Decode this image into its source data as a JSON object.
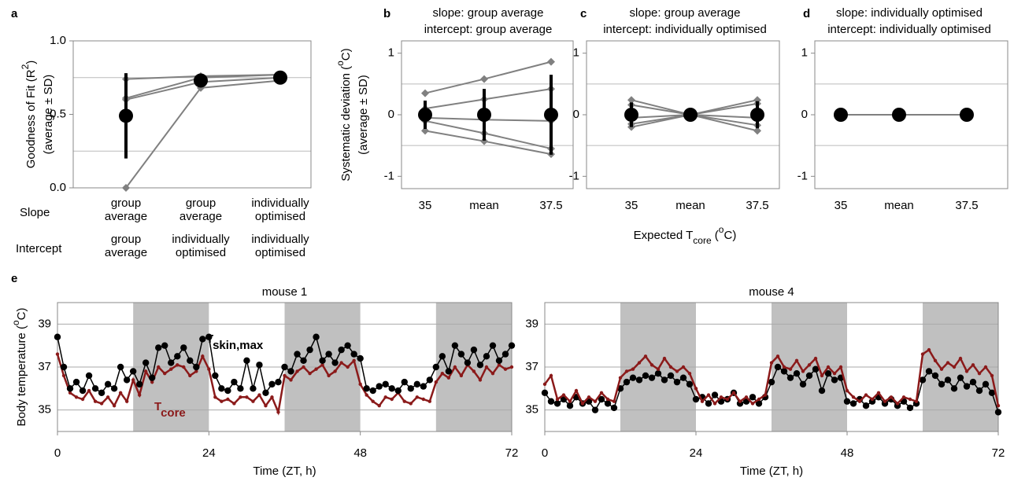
{
  "chart_data": [
    {
      "type": "line",
      "panel_label": "a",
      "y_label": [
        [
          {
            "text": "Goodness of Fit (R"
          },
          {
            "text": "2",
            "sup": true
          },
          {
            "text": ")"
          }
        ],
        [
          {
            "text": "(average ± SD)"
          }
        ]
      ],
      "row_labels": [
        "Slope",
        "Intercept"
      ],
      "slope_labels": [
        "group average",
        "group average",
        "individually optimised"
      ],
      "intercept_labels": [
        "group average",
        "individually optimised",
        "individually optimised"
      ],
      "ylim": [
        0,
        1
      ],
      "yticks": [
        {
          "value": 0,
          "label": "0.0"
        },
        {
          "value": 0.5,
          "label": "0.5"
        },
        {
          "value": 1,
          "label": "1.0"
        }
      ],
      "grid": [
        0.25,
        0.75
      ],
      "series": [
        {
          "color": "#808080",
          "values": [
            0.74,
            0.76,
            0.77
          ]
        },
        {
          "color": "#808080",
          "values": [
            0.61,
            0.75,
            0.77
          ]
        },
        {
          "color": "#808080",
          "values": [
            0.6,
            0.72,
            0.75
          ]
        },
        {
          "color": "#808080",
          "values": [
            0.0,
            0.68,
            0.73
          ]
        }
      ],
      "mean": {
        "color": "#000000",
        "values": [
          0.49,
          0.73,
          0.75
        ],
        "sd": [
          0.29,
          0.03,
          0.02
        ]
      }
    },
    {
      "type": "line",
      "panel_label": "b",
      "title": [
        "slope: group average",
        "intercept: group average"
      ],
      "y_label": [
        [
          {
            "text": "Systematic deviation ("
          },
          {
            "text": "o",
            "sup": true
          },
          {
            "text": "C)"
          }
        ],
        [
          {
            "text": "(average ± SD)"
          }
        ]
      ],
      "categories": [
        "35",
        "mean",
        "37.5"
      ],
      "ylim": [
        -1.2,
        1.2
      ],
      "yticks": [
        -1,
        0,
        1
      ],
      "grid": [
        -0.5,
        0.5
      ],
      "series": [
        {
          "color": "#808080",
          "values": [
            0.35,
            0.58,
            0.86
          ]
        },
        {
          "color": "#808080",
          "values": [
            0.1,
            0.25,
            0.42
          ]
        },
        {
          "color": "#808080",
          "values": [
            -0.05,
            -0.08,
            -0.1
          ]
        },
        {
          "color": "#808080",
          "values": [
            -0.1,
            -0.3,
            -0.55
          ]
        },
        {
          "color": "#808080",
          "values": [
            -0.26,
            -0.43,
            -0.64
          ]
        }
      ],
      "mean": {
        "color": "#000000",
        "values": [
          0,
          0,
          0
        ],
        "sd": [
          0.23,
          0.42,
          0.65
        ]
      }
    },
    {
      "type": "line",
      "panel_label": "c",
      "title": [
        "slope: group average",
        "intercept: individually optimised"
      ],
      "x_label": [
        {
          "text": "Expected T"
        },
        {
          "text": "core",
          "sub": true
        },
        {
          "text": " ("
        },
        {
          "text": "o",
          "sup": true
        },
        {
          "text": "C)"
        }
      ],
      "categories": [
        "35",
        "mean",
        "37.5"
      ],
      "ylim": [
        -1.2,
        1.2
      ],
      "yticks": [
        -1,
        0,
        1
      ],
      "grid": [
        -0.5,
        0.5
      ],
      "series": [
        {
          "color": "#808080",
          "values": [
            0.24,
            0,
            0.24
          ]
        },
        {
          "color": "#808080",
          "values": [
            0.16,
            0,
            0.18
          ]
        },
        {
          "color": "#808080",
          "values": [
            -0.05,
            0,
            -0.05
          ]
        },
        {
          "color": "#808080",
          "values": [
            -0.15,
            0,
            -0.17
          ]
        },
        {
          "color": "#808080",
          "values": [
            -0.2,
            0,
            -0.26
          ]
        }
      ],
      "mean": {
        "color": "#000000",
        "values": [
          0,
          0,
          0
        ],
        "sd": [
          0.2,
          0,
          0.22
        ]
      }
    },
    {
      "type": "line",
      "panel_label": "d",
      "title": [
        "slope: individually optimised",
        "intercept: individually optimised"
      ],
      "categories": [
        "35",
        "mean",
        "37.5"
      ],
      "ylim": [
        -1.2,
        1.2
      ],
      "yticks": [
        -1,
        0,
        1
      ],
      "grid": [
        -0.5,
        0.5
      ],
      "series": [
        {
          "color": "#808080",
          "values": [
            0,
            0,
            0
          ]
        }
      ],
      "mean": {
        "color": "#000000",
        "values": [
          0,
          0,
          0
        ],
        "sd": [
          0,
          0,
          0
        ]
      }
    },
    {
      "type": "line",
      "panel_label": "e",
      "title": "mouse 1",
      "x_label": "Time (ZT, h)",
      "y_label": [
        [
          {
            "text": "Body temperature ("
          },
          {
            "text": "o",
            "sup": true
          },
          {
            "text": "C)"
          }
        ]
      ],
      "xlim": [
        0,
        72
      ],
      "xticks": [
        0,
        24,
        48,
        72
      ],
      "ylim": [
        34,
        40
      ],
      "yticks": [
        35,
        37,
        39
      ],
      "grid": true,
      "dark_periods": [
        [
          12,
          24
        ],
        [
          36,
          48
        ],
        [
          60,
          72
        ]
      ],
      "x": [
        0,
        1,
        2,
        3,
        4,
        5,
        6,
        7,
        8,
        9,
        10,
        11,
        12,
        13,
        14,
        15,
        16,
        17,
        18,
        19,
        20,
        21,
        22,
        23,
        24,
        25,
        26,
        27,
        28,
        29,
        30,
        31,
        32,
        33,
        34,
        35,
        36,
        37,
        38,
        39,
        40,
        41,
        42,
        43,
        44,
        45,
        46,
        47,
        48,
        49,
        50,
        51,
        52,
        53,
        54,
        55,
        56,
        57,
        58,
        59,
        60,
        61,
        62,
        63,
        64,
        65,
        66,
        67,
        68,
        69,
        70,
        71,
        72
      ],
      "series": [
        {
          "color": "#8b1a1a",
          "marker": "dot",
          "values": [
            37.6,
            36.6,
            35.8,
            35.6,
            35.5,
            35.9,
            35.4,
            35.3,
            35.6,
            35.2,
            35.8,
            35.4,
            36.4,
            35.7,
            36.8,
            36.3,
            37.0,
            36.7,
            36.9,
            37.1,
            37.0,
            36.6,
            36.8,
            37.5,
            36.9,
            35.6,
            35.4,
            35.5,
            35.3,
            35.6,
            35.6,
            35.4,
            35.7,
            35.2,
            35.6,
            34.9,
            36.6,
            36.4,
            36.8,
            37.0,
            36.7,
            36.9,
            37.1,
            36.6,
            36.8,
            37.2,
            37.0,
            37.3,
            36.2,
            35.7,
            35.4,
            35.2,
            35.6,
            35.5,
            35.8,
            35.4,
            35.3,
            35.6,
            35.5,
            35.4,
            36.3,
            36.7,
            36.5,
            37.0,
            36.6,
            37.1,
            36.8,
            36.4,
            37.0,
            36.7,
            37.1,
            36.9,
            37.0
          ]
        },
        {
          "color": "#000000",
          "marker": "circle",
          "values": [
            38.4,
            37.0,
            36.0,
            36.3,
            35.9,
            36.6,
            36.0,
            35.8,
            36.2,
            36.0,
            37.0,
            36.4,
            36.8,
            36.2,
            37.2,
            36.5,
            37.9,
            38.0,
            37.2,
            37.5,
            37.9,
            37.3,
            37.0,
            38.3,
            38.4,
            36.6,
            36.0,
            35.9,
            36.3,
            36.0,
            37.3,
            36.0,
            37.1,
            35.8,
            36.2,
            36.3,
            37.0,
            36.8,
            37.6,
            37.3,
            37.8,
            38.4,
            37.3,
            37.6,
            37.2,
            37.8,
            38.0,
            37.6,
            37.4,
            36.0,
            35.9,
            36.1,
            36.2,
            36.0,
            35.9,
            36.3,
            36.0,
            36.2,
            36.1,
            36.4,
            37.0,
            37.5,
            36.8,
            38.0,
            37.6,
            37.2,
            37.8,
            37.1,
            37.5,
            38.0,
            37.3,
            37.6,
            38.0
          ]
        }
      ],
      "annotations": [
        {
          "color": "#000000",
          "parts": [
            {
              "text": "T"
            },
            {
              "text": "skin,max",
              "sub": true
            }
          ]
        },
        {
          "color": "#8b1a1a",
          "parts": [
            {
              "text": "T"
            },
            {
              "text": "core",
              "sub": true
            }
          ]
        }
      ]
    },
    {
      "type": "line",
      "title": "mouse 4",
      "x_label": "Time (ZT, h)",
      "xlim": [
        0,
        72
      ],
      "xticks": [
        0,
        24,
        48,
        72
      ],
      "ylim": [
        34,
        40
      ],
      "yticks": [
        35,
        37,
        39
      ],
      "grid": true,
      "dark_periods": [
        [
          12,
          24
        ],
        [
          36,
          48
        ],
        [
          60,
          72
        ]
      ],
      "x": [
        0,
        1,
        2,
        3,
        4,
        5,
        6,
        7,
        8,
        9,
        10,
        11,
        12,
        13,
        14,
        15,
        16,
        17,
        18,
        19,
        20,
        21,
        22,
        23,
        24,
        25,
        26,
        27,
        28,
        29,
        30,
        31,
        32,
        33,
        34,
        35,
        36,
        37,
        38,
        39,
        40,
        41,
        42,
        43,
        44,
        45,
        46,
        47,
        48,
        49,
        50,
        51,
        52,
        53,
        54,
        55,
        56,
        57,
        58,
        59,
        60,
        61,
        62,
        63,
        64,
        65,
        66,
        67,
        68,
        69,
        70,
        71,
        72
      ],
      "series": [
        {
          "color": "#000000",
          "marker": "circle",
          "values": [
            35.8,
            35.4,
            35.3,
            35.5,
            35.2,
            35.6,
            35.3,
            35.4,
            35.0,
            35.5,
            35.3,
            35.1,
            36.0,
            36.3,
            36.5,
            36.4,
            36.6,
            36.5,
            36.7,
            36.4,
            36.6,
            36.3,
            36.5,
            36.2,
            35.5,
            35.6,
            35.3,
            35.7,
            35.4,
            35.5,
            35.8,
            35.3,
            35.4,
            35.6,
            35.3,
            35.6,
            36.3,
            37.0,
            36.8,
            36.5,
            36.7,
            36.2,
            36.6,
            36.9,
            35.9,
            36.7,
            36.4,
            36.5,
            35.4,
            35.3,
            35.5,
            35.2,
            35.4,
            35.6,
            35.3,
            35.5,
            35.2,
            35.4,
            35.1,
            35.3,
            36.4,
            36.8,
            36.6,
            36.2,
            36.4,
            36.0,
            36.5,
            36.1,
            36.3,
            35.9,
            36.2,
            35.8,
            34.9
          ]
        },
        {
          "color": "#8b1a1a",
          "marker": "dot",
          "values": [
            36.2,
            36.6,
            35.5,
            35.7,
            35.4,
            35.9,
            35.3,
            35.6,
            35.4,
            35.8,
            35.5,
            35.4,
            36.5,
            36.8,
            36.9,
            37.2,
            37.5,
            37.1,
            36.9,
            37.4,
            37.0,
            36.8,
            37.0,
            36.7,
            36.0,
            35.4,
            35.7,
            35.3,
            35.6,
            35.5,
            35.8,
            35.4,
            35.6,
            35.3,
            35.5,
            35.7,
            37.2,
            37.5,
            37.0,
            36.9,
            37.3,
            36.8,
            37.1,
            37.4,
            36.6,
            37.0,
            36.7,
            37.0,
            35.9,
            35.6,
            35.4,
            35.7,
            35.5,
            35.8,
            35.4,
            35.6,
            35.3,
            35.6,
            35.5,
            35.4,
            37.6,
            37.8,
            37.3,
            36.9,
            37.2,
            37.0,
            37.4,
            36.8,
            37.1,
            36.7,
            37.0,
            36.6,
            35.2
          ]
        }
      ]
    }
  ]
}
